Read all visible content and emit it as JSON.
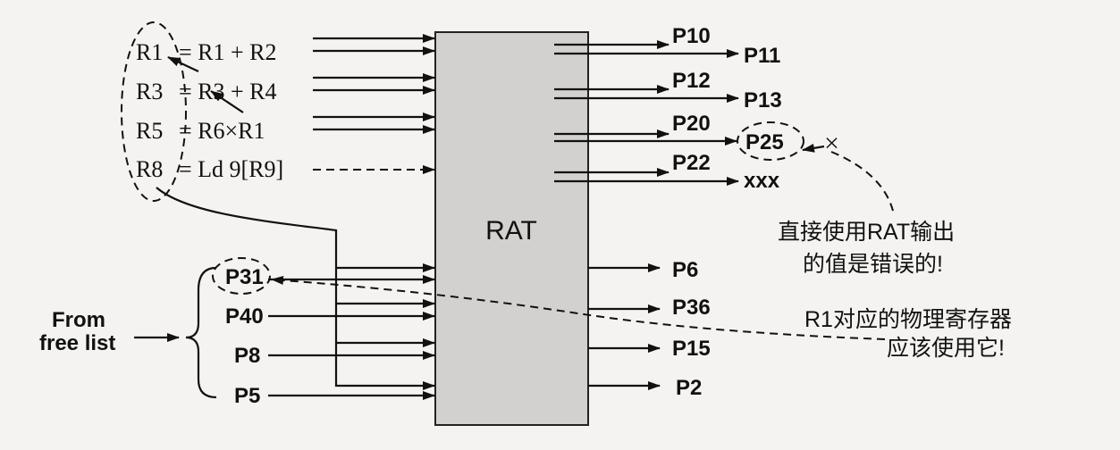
{
  "table_label": "RAT",
  "instructions": [
    {
      "dest": "R1",
      "expr": "= R1 + R2"
    },
    {
      "dest": "R3",
      "expr": "= R3 + R4"
    },
    {
      "dest": "R5",
      "expr": "= R6×R1"
    },
    {
      "dest": "R8",
      "expr": "= Ld 9[R9]"
    }
  ],
  "free_list": {
    "label_line1": "From",
    "label_line2": "free list",
    "regs": [
      "P31",
      "P40",
      "P8",
      "P5"
    ]
  },
  "rat_outputs_top": [
    {
      "a": "P10",
      "b": "P11"
    },
    {
      "a": "P12",
      "b": "P13"
    },
    {
      "a": "P20",
      "b": "P25"
    },
    {
      "a": "P22",
      "b": "xxx"
    }
  ],
  "rat_outputs_bottom": [
    "P6",
    "P36",
    "P15",
    "P2"
  ],
  "cross_mark": "×",
  "note_wrong": {
    "line1": "直接使用RAT输出",
    "line2": "的值是错误的!"
  },
  "note_right": {
    "line1": "R1对应的物理寄存器",
    "line2": "应该使用它!"
  }
}
